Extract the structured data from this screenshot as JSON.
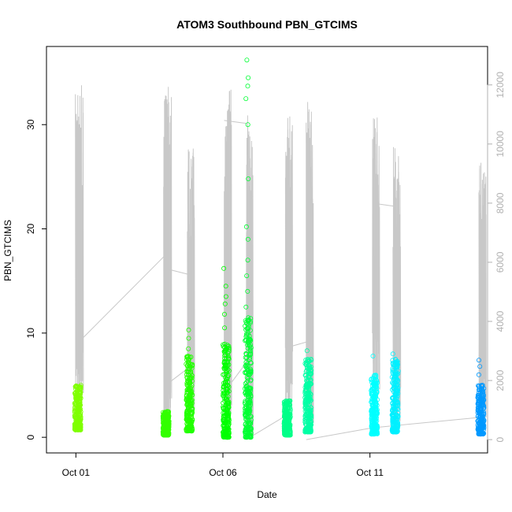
{
  "chart_data": {
    "type": "scatter",
    "title": "ATOM3 Southbound PBN_GTCIMS",
    "xlabel": "Date",
    "ylabel": "PBN_GTCIMS",
    "x_ticks": [
      "Oct 01",
      "Oct 06",
      "Oct 11"
    ],
    "x_range": [
      "Sep 30",
      "Oct 15"
    ],
    "y_left": {
      "ticks": [
        0,
        10,
        20,
        30
      ],
      "lim": [
        -1.5,
        37.5
      ]
    },
    "y_right": {
      "ticks": [
        0,
        2000,
        4000,
        6000,
        8000,
        10000,
        12000
      ],
      "lim": [
        -450,
        13300
      ],
      "color": "#b0b0b0"
    },
    "grid": false,
    "legend": "none",
    "series": [
      {
        "marker": "open-circle",
        "axis": "left",
        "clusters": [
          {
            "date": "Oct 01 00:00",
            "ymin": 0.7,
            "ymax": 5.0,
            "outliers": [],
            "color": "#7fff00"
          },
          {
            "date": "Oct 04 00:00",
            "ymin": 0.2,
            "ymax": 2.5,
            "outliers": [],
            "color": "#33ff00"
          },
          {
            "date": "Oct 04 19:00",
            "ymin": 0.6,
            "ymax": 7.8,
            "outliers": [
              8.5,
              9.5,
              10.3
            ],
            "color": "#22ff00"
          },
          {
            "date": "Oct 06 01:00",
            "ymin": 0.0,
            "ymax": 9.0,
            "outliers": [
              10.5,
              11.8,
              12.8,
              13.5,
              14.5,
              16.2
            ],
            "color": "#00ff00"
          },
          {
            "date": "Oct 06 19:00",
            "ymin": 0.0,
            "ymax": 11.5,
            "outliers": [
              12.5,
              14.0,
              15.5,
              17.0,
              19.0,
              20.2,
              24.8,
              30.0,
              32.5,
              33.7,
              34.5,
              36.2
            ],
            "color": "#00ff33"
          },
          {
            "date": "Oct 08 03:00",
            "ymin": 0.2,
            "ymax": 3.5,
            "outliers": [],
            "color": "#00ff88"
          },
          {
            "date": "Oct 08 20:00",
            "ymin": 0.5,
            "ymax": 7.5,
            "outliers": [
              8.3
            ],
            "color": "#00ffa5"
          },
          {
            "date": "Oct 11 02:00",
            "ymin": 0.3,
            "ymax": 6.0,
            "outliers": [
              7.8
            ],
            "color": "#00ffff"
          },
          {
            "date": "Oct 11 19:00",
            "ymin": 0.5,
            "ymax": 7.5,
            "outliers": [
              8.0
            ],
            "color": "#00f0ff"
          },
          {
            "date": "Oct 14 17:00",
            "ymin": 0.3,
            "ymax": 5.0,
            "outliers": [
              6.0,
              6.8,
              7.4
            ],
            "color": "#0099ff"
          }
        ]
      },
      {
        "type": "line",
        "axis": "right",
        "color": "#c8c8c8",
        "bursts": [
          {
            "date": "Oct 01 00:00",
            "base": 3200,
            "peak": 12000
          },
          {
            "date": "Oct 04 00:00",
            "base": 1800,
            "peak": 12000
          },
          {
            "date": "Oct 04 19:00",
            "base": 2400,
            "peak": 10000
          },
          {
            "date": "Oct 06 01:00",
            "base": 1600,
            "peak": 12000
          },
          {
            "date": "Oct 06 19:00",
            "base": 300,
            "peak": 11000
          },
          {
            "date": "Oct 08 03:00",
            "base": 3100,
            "peak": 11000
          },
          {
            "date": "Oct 08 20:00",
            "base": 1200,
            "peak": 11500
          },
          {
            "date": "Oct 11 02:00",
            "base": 3600,
            "peak": 11000
          },
          {
            "date": "Oct 11 19:00",
            "base": 2000,
            "peak": 10000
          },
          {
            "date": "Oct 14 17:00",
            "base": 2500,
            "peak": 9500
          }
        ],
        "connectors": [
          [
            [
              "Oct 01 00:00",
              3200
            ],
            [
              "Oct 04 00:00",
              6200
            ]
          ],
          [
            [
              "Oct 04 00:00",
              5800
            ],
            [
              "Oct 04 19:00",
              5600
            ]
          ],
          [
            [
              "Oct 04 00:00",
              1800
            ],
            [
              "Oct 04 19:00",
              2400
            ]
          ],
          [
            [
              "Oct 06 01:00",
              10800
            ],
            [
              "Oct 06 19:00",
              10700
            ]
          ],
          [
            [
              "Oct 06 01:00",
              1600
            ],
            [
              "Oct 06 19:00",
              2600
            ]
          ],
          [
            [
              "Oct 06 19:00",
              0
            ],
            [
              "Oct 08 03:00",
              800
            ]
          ],
          [
            [
              "Oct 08 03:00",
              3100
            ],
            [
              "Oct 08 20:00",
              3300
            ]
          ],
          [
            [
              "Oct 08 20:00",
              0
            ],
            [
              "Oct 11 02:00",
              400
            ]
          ],
          [
            [
              "Oct 11 02:00",
              8000
            ],
            [
              "Oct 11 19:00",
              7900
            ]
          ],
          [
            [
              "Oct 11 02:00",
              400
            ],
            [
              "Oct 14 17:00",
              750
            ]
          ]
        ]
      }
    ]
  }
}
